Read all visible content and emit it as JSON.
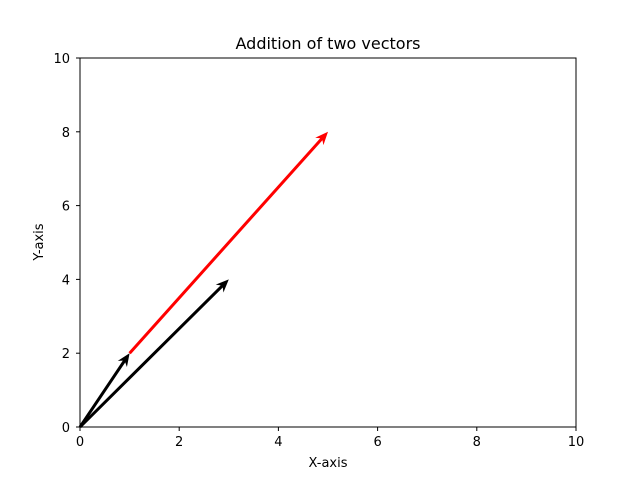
{
  "chart_data": {
    "type": "quiver",
    "title": "Addition of two vectors",
    "xlabel": "X-axis",
    "ylabel": "Y-axis",
    "xlim": [
      0,
      10
    ],
    "ylim": [
      0,
      10
    ],
    "xticks": [
      0,
      2,
      4,
      6,
      8,
      10
    ],
    "yticks": [
      0,
      2,
      4,
      6,
      8,
      10
    ],
    "grid": false,
    "vectors": [
      {
        "from": [
          0,
          0
        ],
        "to": [
          1,
          2
        ],
        "color": "#000000"
      },
      {
        "from": [
          0,
          0
        ],
        "to": [
          3,
          4
        ],
        "color": "#000000"
      },
      {
        "from": [
          1,
          2
        ],
        "to": [
          5,
          8
        ],
        "color": "#ff0000"
      }
    ]
  }
}
